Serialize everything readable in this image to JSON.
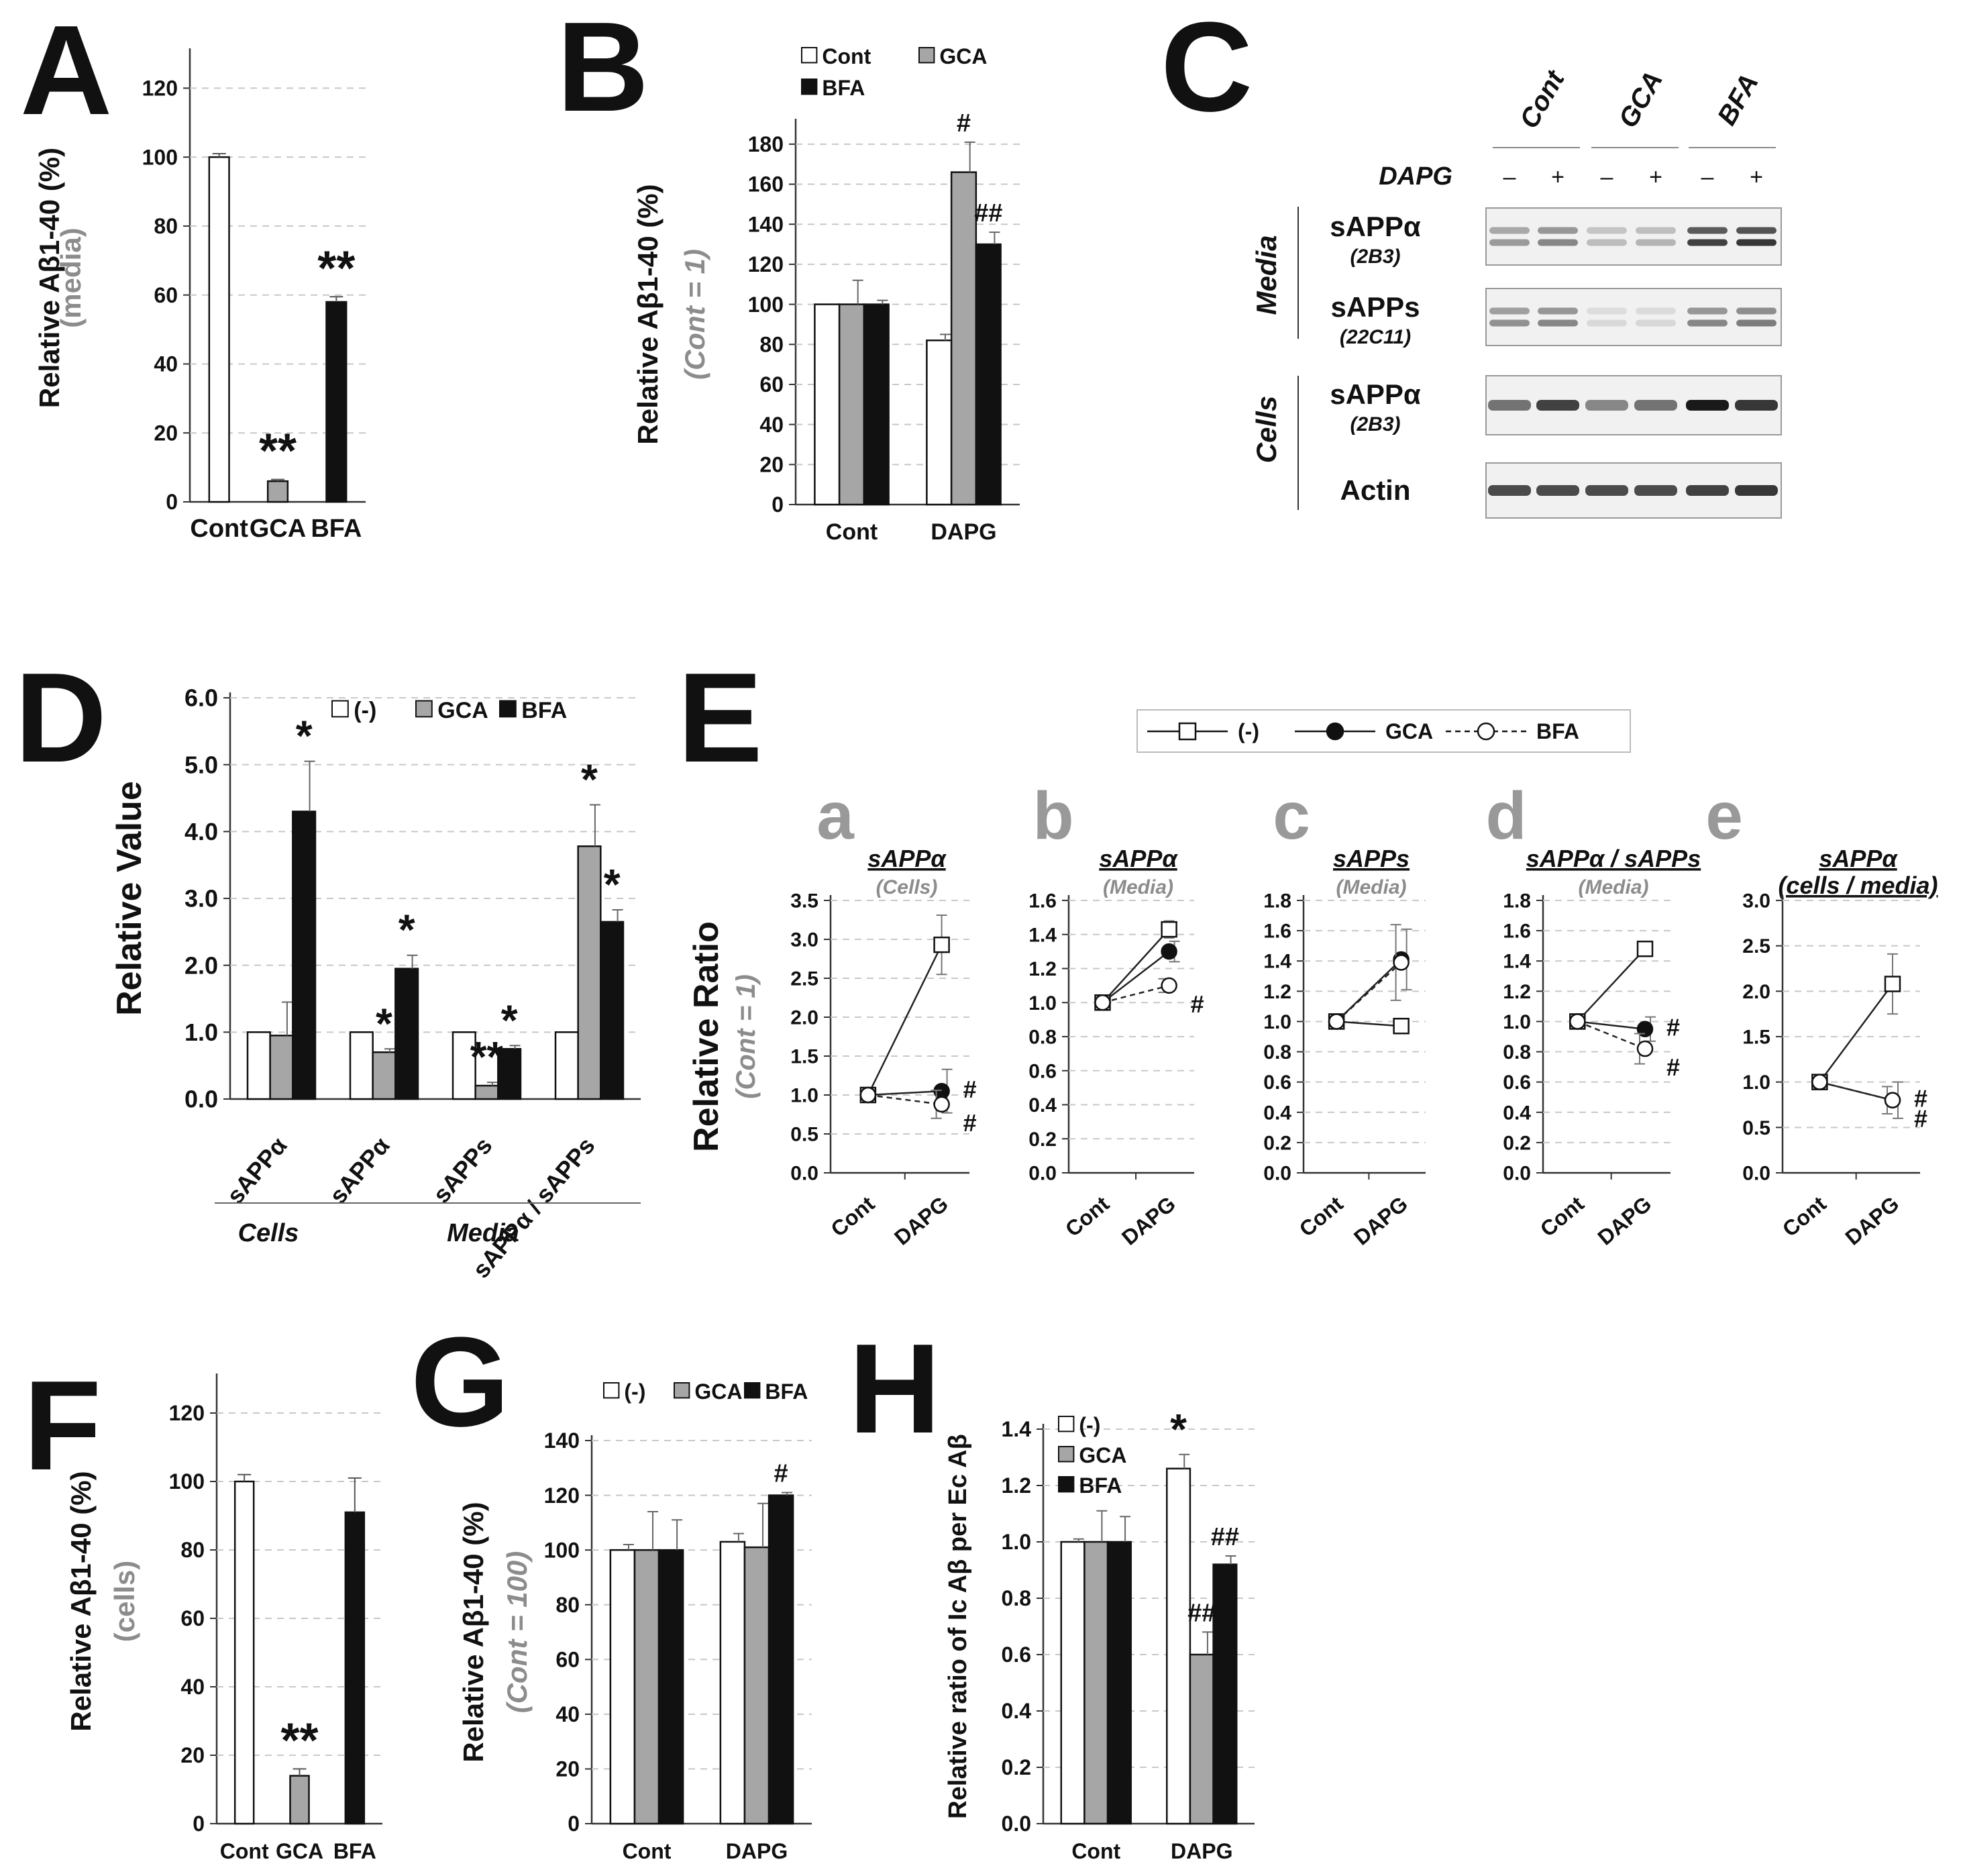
{
  "colors": {
    "white": "#ffffff",
    "gray": "#a6a6a6",
    "black": "#111111",
    "accent_gray": "#8c8c8c",
    "grid": "#c8c8c8"
  },
  "chart_data": [
    {
      "id": "A",
      "panel_letter": "A",
      "type": "bar",
      "title": "",
      "ylabel": "Relative Aβ1-40 (%)",
      "ylabel2": "(media)",
      "ylim": [
        0,
        130
      ],
      "yticks": [
        "0",
        "20",
        "40",
        "60",
        "80",
        "100",
        "120"
      ],
      "categories": [
        "Cont",
        "GCA",
        "BFA"
      ],
      "series": [
        {
          "name": "value",
          "values": [
            100,
            6,
            58
          ],
          "errors": [
            1,
            0.5,
            1.5
          ],
          "fills": [
            "white",
            "gray",
            "black"
          ]
        }
      ],
      "stars": [
        "",
        "**",
        "**"
      ]
    },
    {
      "id": "B",
      "panel_letter": "B",
      "type": "bar",
      "title": "",
      "ylabel": "Relative Aβ1-40 (%)",
      "ylabel2": "(Cont = 1)",
      "ylim": [
        0,
        190
      ],
      "yticks": [
        "0",
        "20",
        "40",
        "60",
        "80",
        "100",
        "120",
        "140",
        "160",
        "180"
      ],
      "categories": [
        "Cont",
        "DAPG"
      ],
      "legend": [
        "Cont",
        "GCA",
        "BFA"
      ],
      "series": [
        {
          "name": "Cont",
          "fill": "white",
          "values": [
            100,
            82
          ],
          "errors": [
            0,
            3
          ]
        },
        {
          "name": "GCA",
          "fill": "gray",
          "values": [
            100,
            166
          ],
          "errors": [
            12,
            15
          ]
        },
        {
          "name": "BFA",
          "fill": "black",
          "values": [
            100,
            130
          ],
          "errors": [
            2,
            6
          ]
        }
      ],
      "annotations": [
        {
          "cat": 1,
          "series": 1,
          "text": "#"
        },
        {
          "cat": 1,
          "series": 2,
          "text": "##"
        }
      ]
    },
    {
      "id": "D",
      "panel_letter": "D",
      "type": "bar",
      "title": "",
      "ylabel": "Relative Value",
      "ylim": [
        0,
        6
      ],
      "yticks": [
        "0.0",
        "1.0",
        "2.0",
        "3.0",
        "4.0",
        "5.0",
        "6.0"
      ],
      "categories": [
        "sAPPα",
        "sAPPα",
        "sAPPs",
        "sAPPα / sAPPs"
      ],
      "group_labels": [
        "Cells",
        "Media"
      ],
      "legend": [
        "(-)",
        "GCA",
        "BFA"
      ],
      "series": [
        {
          "name": "(-)",
          "fill": "white",
          "values": [
            1.0,
            1.0,
            1.0,
            1.0
          ],
          "errors": [
            0,
            0,
            0,
            0
          ]
        },
        {
          "name": "GCA",
          "fill": "gray",
          "values": [
            0.95,
            0.7,
            0.2,
            3.78
          ],
          "errors": [
            0.5,
            0.05,
            0.05,
            0.62
          ]
        },
        {
          "name": "BFA",
          "fill": "black",
          "values": [
            4.3,
            1.95,
            0.75,
            2.65
          ],
          "errors": [
            0.75,
            0.2,
            0.05,
            0.18
          ]
        }
      ],
      "annotations": [
        {
          "cat": 0,
          "series": 2,
          "text": "*"
        },
        {
          "cat": 1,
          "series": 1,
          "text": "*"
        },
        {
          "cat": 1,
          "series": 2,
          "text": "*"
        },
        {
          "cat": 2,
          "series": 1,
          "text": "**"
        },
        {
          "cat": 2,
          "series": 2,
          "text": "*"
        },
        {
          "cat": 3,
          "series": 1,
          "text": "*"
        },
        {
          "cat": 3,
          "series": 2,
          "text": "*"
        }
      ]
    },
    {
      "id": "Ea",
      "panel_letter": "a",
      "type": "line",
      "title": "sAPPα",
      "subtitle": "(Cells)",
      "ylim": [
        0,
        3.5
      ],
      "yticks": [
        "0.0",
        "0.5",
        "1.0",
        "1.5",
        "2.0",
        "2.5",
        "3.0",
        "3.5"
      ],
      "x": [
        "Cont",
        "DAPG"
      ],
      "series": [
        {
          "name": "(-)",
          "values": [
            1.0,
            2.93
          ],
          "errors": [
            0,
            0.38
          ]
        },
        {
          "name": "GCA",
          "values": [
            1.0,
            1.05
          ],
          "errors": [
            0,
            0.28
          ]
        },
        {
          "name": "BFA",
          "values": [
            1.0,
            0.88
          ],
          "errors": [
            0,
            0.18
          ]
        }
      ],
      "marks": [
        {
          "series": 1,
          "text": "#"
        },
        {
          "series": 2,
          "text": "#"
        }
      ]
    },
    {
      "id": "Eb",
      "panel_letter": "b",
      "type": "line",
      "title": "sAPPα",
      "subtitle": "(Media)",
      "ylim": [
        0,
        1.6
      ],
      "yticks": [
        "0.0",
        "0.2",
        "0.4",
        "0.6",
        "0.8",
        "1.0",
        "1.2",
        "1.4",
        "1.6"
      ],
      "x": [
        "Cont",
        "DAPG"
      ],
      "series": [
        {
          "name": "(-)",
          "values": [
            1.0,
            1.43
          ],
          "errors": [
            0,
            0.05
          ]
        },
        {
          "name": "GCA",
          "values": [
            1.0,
            1.3
          ],
          "errors": [
            0,
            0.06
          ]
        },
        {
          "name": "BFA",
          "values": [
            1.0,
            1.1
          ],
          "errors": [
            0,
            0.04
          ]
        }
      ],
      "marks": [
        {
          "series": 2,
          "text": "#"
        }
      ]
    },
    {
      "id": "Ec",
      "panel_letter": "c",
      "type": "line",
      "title": "sAPPs",
      "subtitle": "(Media)",
      "ylim": [
        0,
        1.8
      ],
      "yticks": [
        "0.0",
        "0.2",
        "0.4",
        "0.6",
        "0.8",
        "1.0",
        "1.2",
        "1.4",
        "1.6",
        "1.8"
      ],
      "x": [
        "Cont",
        "DAPG"
      ],
      "series": [
        {
          "name": "(-)",
          "values": [
            1.0,
            0.97
          ],
          "errors": [
            0,
            0.02
          ]
        },
        {
          "name": "GCA",
          "values": [
            1.0,
            1.41
          ],
          "errors": [
            0,
            0.2
          ]
        },
        {
          "name": "BFA",
          "values": [
            1.0,
            1.39
          ],
          "errors": [
            0,
            0.25
          ]
        }
      ],
      "marks": []
    },
    {
      "id": "Ed",
      "panel_letter": "d",
      "type": "line",
      "title": "sAPPα / sAPPs",
      "subtitle": "(Media)",
      "ylim": [
        0,
        1.8
      ],
      "yticks": [
        "0.0",
        "0.2",
        "0.4",
        "0.6",
        "0.8",
        "1.0",
        "1.2",
        "1.4",
        "1.6",
        "1.8"
      ],
      "x": [
        "Cont",
        "DAPG"
      ],
      "series": [
        {
          "name": "(-)",
          "values": [
            1.0,
            1.48
          ],
          "errors": [
            0,
            0.02
          ]
        },
        {
          "name": "GCA",
          "values": [
            1.0,
            0.95
          ],
          "errors": [
            0,
            0.08
          ]
        },
        {
          "name": "BFA",
          "values": [
            1.0,
            0.82
          ],
          "errors": [
            0,
            0.1
          ]
        }
      ],
      "marks": [
        {
          "series": 1,
          "text": "#"
        },
        {
          "series": 2,
          "text": "#"
        }
      ]
    },
    {
      "id": "Ee",
      "panel_letter": "e",
      "type": "line",
      "title": "sAPPα",
      "subtitle": "(cells / media)",
      "ylim": [
        0,
        3.0
      ],
      "yticks": [
        "0.0",
        "0.5",
        "1.0",
        "1.5",
        "2.0",
        "2.5",
        "3.0"
      ],
      "x": [
        "Cont",
        "DAPG"
      ],
      "series": [
        {
          "name": "(-)",
          "values": [
            1.0,
            2.08
          ],
          "errors": [
            0,
            0.33
          ]
        },
        {
          "name": "GCA",
          "values": [
            1.0,
            0.8
          ],
          "errors": [
            0,
            0.2
          ]
        },
        {
          "name": "BFA",
          "values": [
            1.0,
            0.8
          ],
          "errors": [
            0,
            0.15
          ]
        }
      ],
      "marks": [
        {
          "series": 1,
          "text": "#"
        },
        {
          "series": 2,
          "text": "#"
        }
      ]
    },
    {
      "id": "F",
      "panel_letter": "F",
      "type": "bar",
      "title": "",
      "ylabel": "Relative Aβ1-40 (%)",
      "ylabel2": "(cells)",
      "ylim": [
        0,
        130
      ],
      "yticks": [
        "0",
        "20",
        "40",
        "60",
        "80",
        "100",
        "120"
      ],
      "categories": [
        "Cont",
        "GCA",
        "BFA"
      ],
      "series": [
        {
          "name": "value",
          "values": [
            100,
            14,
            91
          ],
          "errors": [
            2,
            2,
            10
          ],
          "fills": [
            "white",
            "gray",
            "black"
          ]
        }
      ],
      "stars": [
        "",
        "**",
        ""
      ]
    },
    {
      "id": "G",
      "panel_letter": "G",
      "type": "bar",
      "title": "",
      "ylabel": "Relative Aβ1-40 (%)",
      "ylabel2": "(Cont = 100)",
      "ylim": [
        0,
        140
      ],
      "yticks": [
        "0",
        "20",
        "40",
        "60",
        "80",
        "100",
        "120",
        "140"
      ],
      "categories": [
        "Cont",
        "DAPG"
      ],
      "legend": [
        "(-)",
        "GCA",
        "BFA"
      ],
      "series": [
        {
          "name": "(-)",
          "fill": "white",
          "values": [
            100,
            103
          ],
          "errors": [
            2,
            3
          ]
        },
        {
          "name": "GCA",
          "fill": "gray",
          "values": [
            100,
            101
          ],
          "errors": [
            14,
            16
          ]
        },
        {
          "name": "BFA",
          "fill": "black",
          "values": [
            100,
            120
          ],
          "errors": [
            11,
            1
          ]
        }
      ],
      "annotations": [
        {
          "cat": 1,
          "series": 2,
          "text": "#"
        }
      ]
    },
    {
      "id": "H",
      "panel_letter": "H",
      "type": "bar",
      "title": "",
      "ylabel": "Relative  ratio of Ic Aβ per Ec Aβ",
      "ylim": [
        0,
        1.4
      ],
      "yticks": [
        "0.0",
        "0.2",
        "0.4",
        "0.6",
        "0.8",
        "1.0",
        "1.2",
        "1.4"
      ],
      "categories": [
        "Cont",
        "DAPG"
      ],
      "legend": [
        "(-)",
        "GCA",
        "BFA"
      ],
      "series": [
        {
          "name": "(-)",
          "fill": "white",
          "values": [
            1.0,
            1.26
          ],
          "errors": [
            0.01,
            0.05
          ]
        },
        {
          "name": "GCA",
          "fill": "gray",
          "values": [
            1.0,
            0.6
          ],
          "errors": [
            0.11,
            0.08
          ]
        },
        {
          "name": "BFA",
          "fill": "black",
          "values": [
            1.0,
            0.92
          ],
          "errors": [
            0.09,
            0.03
          ]
        }
      ],
      "annotations": [
        {
          "cat": 1,
          "series": 0,
          "text": "*"
        },
        {
          "cat": 1,
          "series": 1,
          "text": "##"
        },
        {
          "cat": 1,
          "series": 2,
          "text": "##"
        }
      ]
    }
  ],
  "panel_c": {
    "letter": "C",
    "lanes": [
      "Cont",
      "GCA",
      "BFA"
    ],
    "dapg_label": "DAPG",
    "signs": [
      "–",
      "+",
      "–",
      "+",
      "–",
      "+"
    ],
    "groups": [
      "Media",
      "Cells"
    ],
    "blots": [
      {
        "label": "sAPPα",
        "antibody": "(2B3)",
        "intensity": [
          0.35,
          0.45,
          0.18,
          0.22,
          0.8,
          0.85
        ]
      },
      {
        "label": "sAPPs",
        "antibody": "(22C11)",
        "intensity": [
          0.4,
          0.45,
          0.04,
          0.05,
          0.45,
          0.5
        ]
      },
      {
        "label": "sAPPα",
        "antibody": "(2B3)",
        "intensity": [
          0.55,
          0.8,
          0.45,
          0.55,
          1.0,
          0.85
        ]
      },
      {
        "label": "Actin",
        "antibody": "",
        "intensity": [
          0.75,
          0.75,
          0.75,
          0.75,
          0.8,
          0.85
        ]
      }
    ]
  },
  "panel_e_header": {
    "letter": "E",
    "legend": [
      "(-)",
      "GCA",
      "BFA"
    ],
    "ylabel": "Relative Ratio",
    "ylabel2": "(Cont = 1)"
  }
}
